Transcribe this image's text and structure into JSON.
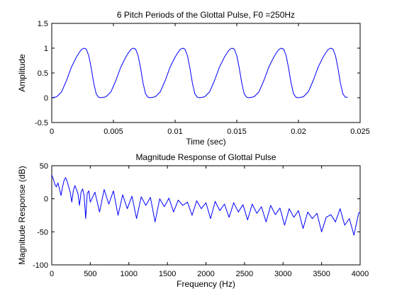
{
  "figure_bg": "#ffffff",
  "line_color": "#0000ff",
  "chart_data": [
    {
      "type": "line",
      "title": "6 Pitch Periods of the Glottal Pulse, F0 =250Hz",
      "xlabel": "Time (sec)",
      "ylabel": "Amplitude",
      "xlim": [
        0,
        0.025
      ],
      "ylim": [
        -0.5,
        1.5
      ],
      "xticks": [
        0,
        0.005,
        0.01,
        0.015,
        0.02,
        0.025
      ],
      "yticks": [
        -0.5,
        0,
        0.5,
        1,
        1.5
      ],
      "xtick_labels": [
        "0",
        "0.005",
        "0.01",
        "0.015",
        "0.02",
        "0.025"
      ],
      "ytick_labels": [
        "-0.5",
        "0",
        "0.5",
        "1",
        "1.5"
      ],
      "grid": false,
      "series": [
        {
          "x": [
            0,
            0.0004,
            0.0008,
            0.0012,
            0.0016,
            0.002,
            0.0022,
            0.0024,
            0.0026,
            0.0028,
            0.003,
            0.0032,
            0.0034,
            0.0036,
            0.0038,
            0.004,
            0.0044,
            0.0048,
            0.0052,
            0.0056,
            0.006,
            0.0062,
            0.0064,
            0.0066,
            0.0068,
            0.007,
            0.0072,
            0.0074,
            0.0076,
            0.0078,
            0.008,
            0.0084,
            0.0088,
            0.0092,
            0.0096,
            0.01,
            0.0102,
            0.0104,
            0.0106,
            0.0108,
            0.011,
            0.0112,
            0.0114,
            0.0116,
            0.0118,
            0.012,
            0.0124,
            0.0128,
            0.0132,
            0.0136,
            0.014,
            0.0142,
            0.0144,
            0.0146,
            0.0148,
            0.015,
            0.0152,
            0.0154,
            0.0156,
            0.0158,
            0.016,
            0.0164,
            0.0168,
            0.0172,
            0.0176,
            0.018,
            0.0182,
            0.0184,
            0.0186,
            0.0188,
            0.019,
            0.0192,
            0.0194,
            0.0196,
            0.0198,
            0.02,
            0.0204,
            0.0208,
            0.0212,
            0.0216,
            0.022,
            0.0222,
            0.0224,
            0.0226,
            0.0228,
            0.023,
            0.0232,
            0.0234,
            0.0236,
            0.0238,
            0.024
          ],
          "y": [
            0,
            0.02,
            0.12,
            0.35,
            0.62,
            0.82,
            0.9,
            0.97,
            1.0,
            0.98,
            0.85,
            0.6,
            0.3,
            0.08,
            0.01,
            0,
            0.02,
            0.12,
            0.35,
            0.62,
            0.82,
            0.9,
            0.97,
            1.0,
            0.98,
            0.85,
            0.6,
            0.3,
            0.08,
            0.01,
            0,
            0.02,
            0.12,
            0.35,
            0.62,
            0.82,
            0.9,
            0.97,
            1.0,
            0.98,
            0.85,
            0.6,
            0.3,
            0.08,
            0.01,
            0,
            0.02,
            0.12,
            0.35,
            0.62,
            0.82,
            0.9,
            0.97,
            1.0,
            0.98,
            0.85,
            0.6,
            0.3,
            0.08,
            0.01,
            0,
            0.02,
            0.12,
            0.35,
            0.62,
            0.82,
            0.9,
            0.97,
            1.0,
            0.98,
            0.85,
            0.6,
            0.3,
            0.08,
            0.01,
            0,
            0.02,
            0.12,
            0.35,
            0.62,
            0.82,
            0.9,
            0.97,
            1.0,
            0.98,
            0.85,
            0.6,
            0.3,
            0.08,
            0.01,
            0.01
          ]
        }
      ]
    },
    {
      "type": "line",
      "title": "Magnitude Response of Glottal Pulse",
      "xlabel": "Frequency (Hz)",
      "ylabel": "Magnitude Response (dB)",
      "xlim": [
        0,
        4000
      ],
      "ylim": [
        -100,
        50
      ],
      "xticks": [
        0,
        500,
        1000,
        1500,
        2000,
        2500,
        3000,
        3500,
        4000
      ],
      "yticks": [
        -100,
        -50,
        0,
        50
      ],
      "xtick_labels": [
        "0",
        "500",
        "1000",
        "1500",
        "2000",
        "2500",
        "3000",
        "3500",
        "4000"
      ],
      "ytick_labels": [
        "-100",
        "-50",
        "0",
        "50"
      ],
      "grid": false,
      "series": [
        {
          "x": [
            0,
            20,
            40,
            60,
            80,
            100,
            120,
            140,
            160,
            180,
            200,
            220,
            240,
            260,
            280,
            300,
            320,
            340,
            360,
            380,
            400,
            420,
            440,
            460,
            480,
            500,
            560,
            620,
            680,
            740,
            800,
            860,
            920,
            980,
            1040,
            1100,
            1160,
            1220,
            1280,
            1340,
            1400,
            1460,
            1520,
            1580,
            1640,
            1700,
            1760,
            1820,
            1880,
            1940,
            2000,
            2060,
            2120,
            2180,
            2240,
            2300,
            2360,
            2420,
            2480,
            2540,
            2600,
            2660,
            2720,
            2780,
            2840,
            2900,
            2960,
            3020,
            3080,
            3140,
            3200,
            3260,
            3320,
            3380,
            3440,
            3500,
            3560,
            3620,
            3680,
            3740,
            3800,
            3860,
            3920,
            3980,
            4000
          ],
          "y": [
            36,
            30,
            22,
            18,
            24,
            15,
            5,
            18,
            28,
            32,
            26,
            18,
            10,
            -5,
            12,
            20,
            14,
            8,
            -10,
            10,
            15,
            5,
            -30,
            8,
            12,
            -5,
            10,
            -20,
            14,
            -8,
            12,
            -25,
            6,
            -15,
            4,
            -30,
            3,
            -10,
            2,
            -35,
            0,
            -12,
            1,
            -20,
            -2,
            -10,
            -5,
            -25,
            -3,
            -15,
            -6,
            -30,
            -4,
            -18,
            -8,
            -28,
            -6,
            -20,
            -9,
            -32,
            -8,
            -22,
            -12,
            -35,
            -10,
            -24,
            -14,
            -40,
            -15,
            -28,
            -18,
            -45,
            -20,
            -30,
            -22,
            -50,
            -28,
            -24,
            -35,
            -15,
            -40,
            -30,
            -55,
            -22,
            -20
          ]
        }
      ]
    }
  ]
}
